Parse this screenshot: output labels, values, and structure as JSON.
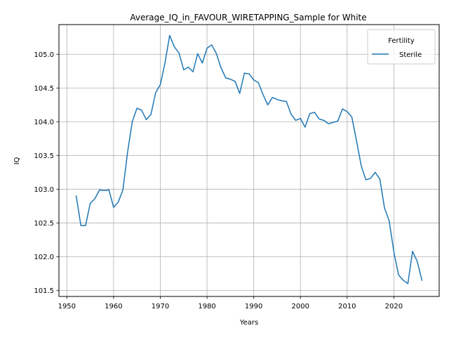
{
  "chart_data": {
    "type": "line",
    "title": "Average_IQ_in_FAVOUR_WIRETAPPING_Sample for White",
    "xlabel": "Years",
    "ylabel": "IQ",
    "xlim": [
      1948.3,
      2029.7
    ],
    "ylim": [
      101.41,
      105.44
    ],
    "xticks": [
      1950,
      1960,
      1970,
      1980,
      1990,
      2000,
      2010,
      2020
    ],
    "yticks": [
      101.5,
      102.0,
      102.5,
      103.0,
      103.5,
      104.0,
      104.5,
      105.0
    ],
    "ytick_labels": [
      "101.5",
      "102.0",
      "102.5",
      "103.0",
      "103.5",
      "104.0",
      "104.5",
      "105.0"
    ],
    "grid": true,
    "legend": {
      "title": "Fertility",
      "position": "top-right"
    },
    "series": [
      {
        "name": "Sterile",
        "color": "#1f77b4",
        "x": [
          1952,
          1953,
          1954,
          1955,
          1956,
          1957,
          1958,
          1959,
          1960,
          1961,
          1962,
          1963,
          1964,
          1965,
          1966,
          1967,
          1968,
          1969,
          1970,
          1971,
          1972,
          1973,
          1974,
          1975,
          1976,
          1977,
          1978,
          1979,
          1980,
          1981,
          1982,
          1983,
          1984,
          1985,
          1986,
          1987,
          1988,
          1989,
          1990,
          1991,
          1992,
          1993,
          1994,
          1995,
          1996,
          1997,
          1998,
          1999,
          2000,
          2001,
          2002,
          2003,
          2004,
          2005,
          2006,
          2007,
          2008,
          2009,
          2010,
          2011,
          2012,
          2013,
          2014,
          2015,
          2016,
          2017,
          2018,
          2019,
          2020,
          2021,
          2022,
          2023,
          2024,
          2025,
          2026
        ],
        "y": [
          102.9,
          102.46,
          102.46,
          102.79,
          102.86,
          102.99,
          102.98,
          102.99,
          102.73,
          102.81,
          102.99,
          103.55,
          104.0,
          104.2,
          104.17,
          104.03,
          104.11,
          104.43,
          104.55,
          104.87,
          105.28,
          105.11,
          105.02,
          104.77,
          104.81,
          104.74,
          105.01,
          104.87,
          105.09,
          105.14,
          105.01,
          104.8,
          104.65,
          104.63,
          104.6,
          104.42,
          104.72,
          104.71,
          104.62,
          104.58,
          104.4,
          104.25,
          104.36,
          104.33,
          104.31,
          104.3,
          104.11,
          104.02,
          104.05,
          103.92,
          104.12,
          104.14,
          104.04,
          104.02,
          103.97,
          103.99,
          104.01,
          104.19,
          104.15,
          104.07,
          103.72,
          103.35,
          103.14,
          103.16,
          103.25,
          103.15,
          102.72,
          102.53,
          102.07,
          101.73,
          101.65,
          101.6,
          102.08,
          101.93,
          101.65
        ]
      }
    ]
  }
}
